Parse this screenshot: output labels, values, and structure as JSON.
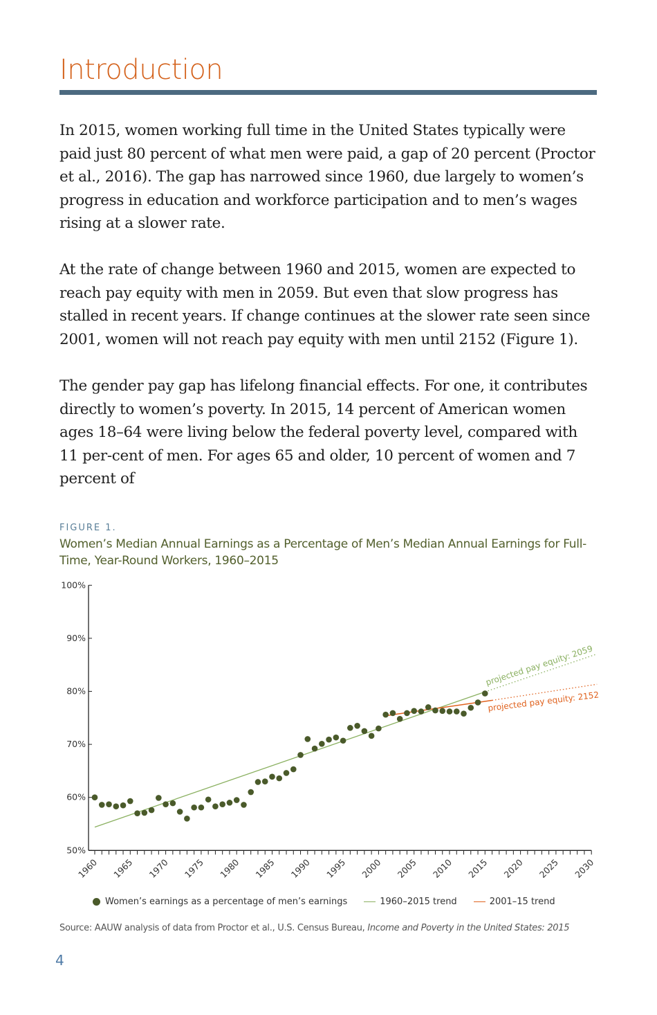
{
  "heading": "Introduction",
  "paragraphs": [
    "In 2015, women working full time in the United States typically were paid just 80 percent of what men were paid, a gap of 20 percent (Proctor et al., 2016). The gap has narrowed since 1960, due largely to women’s progress in education and workforce participation and to men’s wages rising at a slower rate.",
    "At the rate of change between 1960 and 2015, women are expected to reach pay equity with men in 2059. But even that slow progress has stalled in recent years. If change continues at the slower rate seen since 2001, women will not reach pay equity with men until 2152 (Figure 1).",
    "The gender pay gap has lifelong financial effects. For one, it contributes directly to women’s poverty. In 2015, 14 percent of American women ages 18–64 were living below the federal poverty level, compared with 11 per-cent of men. For ages 65 and older, 10 percent of women and 7 percent of"
  ],
  "figure": {
    "label": "FIGURE 1.",
    "title": "Women’s Median Annual Earnings as a Percentage of Men’s Median Annual Earnings for Full-Time, Year-Round Workers, 1960–2015",
    "source_prefix": "Source: AAUW analysis of data from Proctor et al., U.S. Census Bureau, ",
    "source_title": "Income and Poverty in the United States: 2015"
  },
  "page_number": "4",
  "chart_data": {
    "type": "scatter",
    "title": "Women’s Median Annual Earnings as a Percentage of Men’s Median Annual Earnings for Full-Time, Year-Round Workers, 1960–2015",
    "xlabel": "",
    "ylabel": "",
    "xlim": [
      1960,
      2030
    ],
    "ylim": [
      50,
      100
    ],
    "x_ticks": [
      "1960",
      "1965",
      "1970",
      "1975",
      "1980",
      "1985",
      "1990",
      "1995",
      "2000",
      "2005",
      "2010",
      "2015",
      "2020",
      "2025",
      "2030"
    ],
    "y_ticks": [
      "50%",
      "60%",
      "70%",
      "80%",
      "90%",
      "100%"
    ],
    "grid": false,
    "legend_position": "bottom",
    "colors": {
      "points": "#4a5a2a",
      "trend_1960": "#8ab060",
      "trend_2001": "#e0621e"
    },
    "series": [
      {
        "name": "Women’s earnings as a percentage of men’s earnings",
        "x": [
          1960,
          1961,
          1962,
          1963,
          1964,
          1965,
          1966,
          1967,
          1968,
          1969,
          1970,
          1971,
          1972,
          1973,
          1974,
          1975,
          1976,
          1977,
          1978,
          1979,
          1980,
          1981,
          1982,
          1983,
          1984,
          1985,
          1986,
          1987,
          1988,
          1989,
          1990,
          1991,
          1992,
          1993,
          1994,
          1995,
          1996,
          1997,
          1998,
          1999,
          2000,
          2001,
          2002,
          2003,
          2004,
          2005,
          2006,
          2007,
          2008,
          2009,
          2010,
          2011,
          2012,
          2013,
          2014,
          2015
        ],
        "values": [
          60.0,
          58.6,
          58.7,
          58.3,
          58.5,
          59.3,
          57.0,
          57.1,
          57.6,
          59.9,
          58.7,
          58.9,
          57.3,
          56.0,
          58.1,
          58.1,
          59.6,
          58.3,
          58.7,
          59.0,
          59.5,
          58.6,
          61.0,
          62.9,
          63.0,
          63.9,
          63.6,
          64.6,
          65.3,
          68.0,
          71.0,
          69.2,
          70.1,
          70.9,
          71.3,
          70.7,
          73.1,
          73.5,
          72.5,
          71.6,
          73.0,
          75.6,
          75.9,
          74.8,
          75.9,
          76.3,
          76.2,
          77.0,
          76.4,
          76.3,
          76.2,
          76.2,
          75.8,
          76.9,
          77.9,
          79.6
        ]
      },
      {
        "name": "1960–2015 trend",
        "x": [
          1960,
          2015
        ],
        "values": [
          54.4,
          79.9
        ],
        "projection_x": [
          2015,
          2030
        ],
        "projection_values": [
          79.9,
          86.9
        ]
      },
      {
        "name": "2001–15 trend",
        "x": [
          2001,
          2016
        ],
        "values": [
          75.4,
          78.3
        ],
        "projection_x": [
          2016,
          2030
        ],
        "projection_values": [
          78.3,
          81.2
        ]
      }
    ],
    "annotations": [
      "projected pay equity: 2059",
      "projected pay equity: 2152"
    ]
  }
}
